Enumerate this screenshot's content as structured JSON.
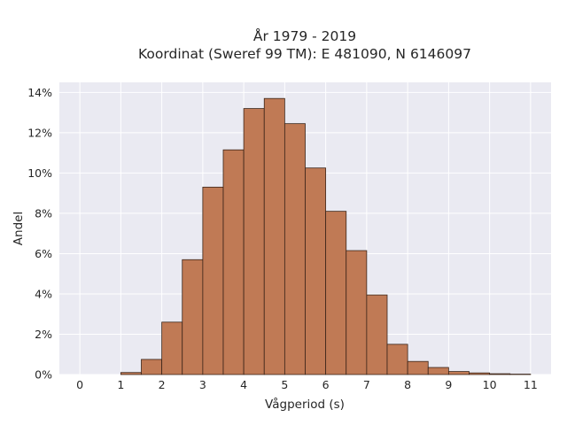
{
  "chart_data": {
    "type": "bar",
    "title": "År 1979 - 2019",
    "subtitle": "Koordinat (Sweref 99 TM): E 481090, N 6146097",
    "xlabel": "Vågperiod (s)",
    "ylabel": "Andel",
    "xlim": [
      -0.5,
      11.5
    ],
    "ylim": [
      0,
      0.145
    ],
    "x_ticks": [
      0,
      1,
      2,
      3,
      4,
      5,
      6,
      7,
      8,
      9,
      10,
      11
    ],
    "x_tick_labels": [
      "0",
      "1",
      "2",
      "3",
      "4",
      "5",
      "6",
      "7",
      "8",
      "9",
      "10",
      "11"
    ],
    "y_ticks": [
      0,
      0.02,
      0.04,
      0.06,
      0.08,
      0.1,
      0.12,
      0.14
    ],
    "y_tick_labels": [
      "0%",
      "2%",
      "4%",
      "6%",
      "8%",
      "10%",
      "12%",
      "14%"
    ],
    "grid": true,
    "bar_color": "#c07a55",
    "edge_color": "#3a2418",
    "bin_width": 0.5,
    "bin_starts": [
      1.0,
      1.5,
      2.0,
      2.5,
      3.0,
      3.5,
      4.0,
      4.5,
      5.0,
      5.5,
      6.0,
      6.5,
      7.0,
      7.5,
      8.0,
      8.5,
      9.0,
      9.5,
      10.0,
      10.5
    ],
    "values": [
      0.001,
      0.0075,
      0.026,
      0.057,
      0.093,
      0.1115,
      0.132,
      0.137,
      0.1245,
      0.1025,
      0.081,
      0.0615,
      0.0395,
      0.015,
      0.0065,
      0.0035,
      0.0015,
      0.0008,
      0.0004,
      0.0002
    ]
  }
}
